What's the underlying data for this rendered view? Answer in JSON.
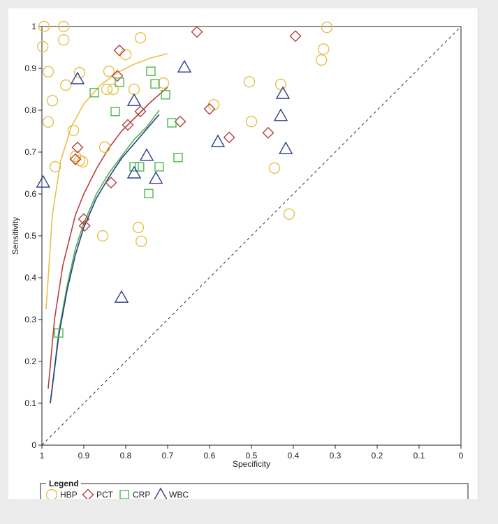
{
  "chart_data": {
    "type": "scatter",
    "title": "",
    "xlabel": "Specificity",
    "ylabel": "Sensitivity",
    "x_reversed": true,
    "xlim": [
      1,
      0
    ],
    "ylim": [
      0,
      1
    ],
    "x_ticks": [
      "1",
      "0.9",
      "0.8",
      "0.7",
      "0.6",
      "0.5",
      "0.4",
      "0.3",
      "0.2",
      "0.1",
      "0"
    ],
    "y_ticks": [
      "0",
      "0.1",
      "0.2",
      "0.3",
      "0.4",
      "0.5",
      "0.6",
      "0.7",
      "0.8",
      "0.9",
      "1"
    ],
    "reference_line": "diagonal dashed",
    "grid": false,
    "legend": {
      "title": "Legend",
      "placement": "bottom"
    },
    "series": [
      {
        "name": "HBP",
        "marker": "circle",
        "color": "#e8c04a",
        "points": [
          [
            0.995,
            1.0
          ],
          [
            0.948,
            1.0
          ],
          [
            0.998,
            0.952
          ],
          [
            0.948,
            0.968
          ],
          [
            0.985,
            0.892
          ],
          [
            0.943,
            0.86
          ],
          [
            0.975,
            0.823
          ],
          [
            0.985,
            0.772
          ],
          [
            0.968,
            0.665
          ],
          [
            0.91,
            0.89
          ],
          [
            0.84,
            0.893
          ],
          [
            0.8,
            0.933
          ],
          [
            0.765,
            0.973
          ],
          [
            0.71,
            0.865
          ],
          [
            0.78,
            0.85
          ],
          [
            0.83,
            0.85
          ],
          [
            0.845,
            0.85
          ],
          [
            0.925,
            0.752
          ],
          [
            0.92,
            0.69
          ],
          [
            0.91,
            0.68
          ],
          [
            0.903,
            0.677
          ],
          [
            0.85,
            0.712
          ],
          [
            0.855,
            0.5
          ],
          [
            0.77,
            0.52
          ],
          [
            0.763,
            0.487
          ],
          [
            0.59,
            0.813
          ],
          [
            0.505,
            0.868
          ],
          [
            0.5,
            0.773
          ],
          [
            0.43,
            0.862
          ],
          [
            0.445,
            0.662
          ],
          [
            0.41,
            0.552
          ],
          [
            0.333,
            0.92
          ],
          [
            0.328,
            0.946
          ],
          [
            0.32,
            0.998
          ]
        ]
      },
      {
        "name": "PCT",
        "marker": "diamond",
        "color": "#b5413e",
        "points": [
          [
            0.815,
            0.943
          ],
          [
            0.82,
            0.882
          ],
          [
            0.795,
            0.765
          ],
          [
            0.765,
            0.797
          ],
          [
            0.915,
            0.711
          ],
          [
            0.92,
            0.683
          ],
          [
            0.835,
            0.627
          ],
          [
            0.9,
            0.54
          ],
          [
            0.898,
            0.524
          ],
          [
            0.67,
            0.773
          ],
          [
            0.63,
            0.987
          ],
          [
            0.6,
            0.803
          ],
          [
            0.553,
            0.735
          ],
          [
            0.46,
            0.746
          ],
          [
            0.395,
            0.977
          ]
        ]
      },
      {
        "name": "CRP",
        "marker": "square",
        "color": "#4cb84c",
        "points": [
          [
            0.96,
            0.268
          ],
          [
            0.875,
            0.842
          ],
          [
            0.815,
            0.867
          ],
          [
            0.825,
            0.797
          ],
          [
            0.74,
            0.893
          ],
          [
            0.73,
            0.863
          ],
          [
            0.705,
            0.837
          ],
          [
            0.69,
            0.77
          ],
          [
            0.78,
            0.665
          ],
          [
            0.767,
            0.665
          ],
          [
            0.72,
            0.665
          ],
          [
            0.675,
            0.687
          ],
          [
            0.745,
            0.601
          ]
        ]
      },
      {
        "name": "WBC",
        "marker": "triangle",
        "color": "#2c3d8e",
        "points": [
          [
            0.997,
            0.628
          ],
          [
            0.915,
            0.875
          ],
          [
            0.78,
            0.823
          ],
          [
            0.78,
            0.65
          ],
          [
            0.75,
            0.692
          ],
          [
            0.728,
            0.637
          ],
          [
            0.81,
            0.353
          ],
          [
            0.66,
            0.903
          ],
          [
            0.58,
            0.725
          ],
          [
            0.425,
            0.84
          ],
          [
            0.43,
            0.787
          ],
          [
            0.418,
            0.708
          ]
        ]
      }
    ],
    "curves": [
      {
        "name": "HBP",
        "color": "#e8c04a",
        "points": [
          [
            0.99,
            0.325
          ],
          [
            0.975,
            0.55
          ],
          [
            0.955,
            0.68
          ],
          [
            0.93,
            0.76
          ],
          [
            0.9,
            0.815
          ],
          [
            0.86,
            0.86
          ],
          [
            0.82,
            0.89
          ],
          [
            0.78,
            0.91
          ],
          [
            0.74,
            0.925
          ],
          [
            0.7,
            0.935
          ]
        ]
      },
      {
        "name": "PCT",
        "color": "#b5413e",
        "points": [
          [
            0.985,
            0.135
          ],
          [
            0.97,
            0.3
          ],
          [
            0.95,
            0.43
          ],
          [
            0.92,
            0.55
          ],
          [
            0.9,
            0.6
          ],
          [
            0.87,
            0.66
          ],
          [
            0.84,
            0.71
          ],
          [
            0.81,
            0.75
          ],
          [
            0.78,
            0.78
          ],
          [
            0.74,
            0.82
          ],
          [
            0.7,
            0.855
          ]
        ]
      },
      {
        "name": "CRP",
        "color": "#4cb84c",
        "points": [
          [
            0.98,
            0.1
          ],
          [
            0.96,
            0.27
          ],
          [
            0.94,
            0.38
          ],
          [
            0.92,
            0.47
          ],
          [
            0.9,
            0.53
          ],
          [
            0.87,
            0.6
          ],
          [
            0.84,
            0.65
          ],
          [
            0.81,
            0.69
          ],
          [
            0.78,
            0.73
          ],
          [
            0.75,
            0.76
          ],
          [
            0.72,
            0.8
          ]
        ]
      },
      {
        "name": "WBC",
        "color": "#2c3d8e",
        "points": [
          [
            0.98,
            0.1
          ],
          [
            0.96,
            0.26
          ],
          [
            0.94,
            0.37
          ],
          [
            0.92,
            0.455
          ],
          [
            0.9,
            0.52
          ],
          [
            0.87,
            0.59
          ],
          [
            0.84,
            0.64
          ],
          [
            0.81,
            0.685
          ],
          [
            0.78,
            0.72
          ],
          [
            0.75,
            0.755
          ],
          [
            0.72,
            0.79
          ]
        ]
      }
    ]
  }
}
